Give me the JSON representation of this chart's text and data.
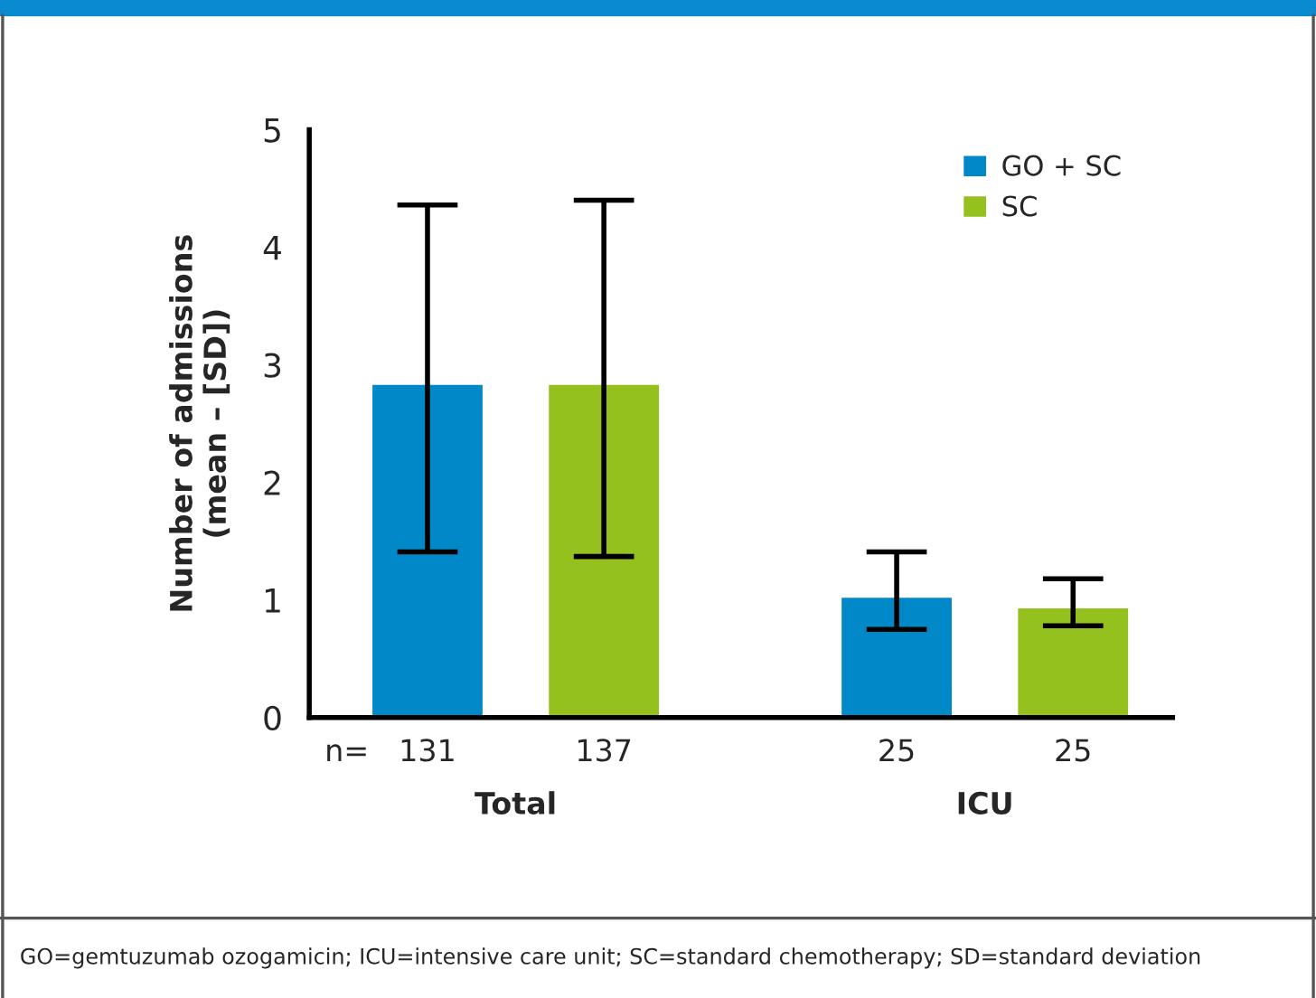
{
  "chart_data": {
    "type": "bar",
    "ylabel": "Number of admissions\n(mean – [SD])",
    "categories": [
      "Total",
      "ICU"
    ],
    "series": [
      {
        "name": "GO + SC",
        "color": "#0088c8",
        "values": [
          2.84,
          1.03
        ],
        "errors": [
          [
            1.41,
            4.36
          ],
          [
            0.75,
            1.41
          ]
        ]
      },
      {
        "name": "SC",
        "color": "#95c11f",
        "values": [
          2.84,
          0.94
        ],
        "errors": [
          [
            1.37,
            4.4
          ],
          [
            0.78,
            1.18
          ]
        ]
      }
    ],
    "ylim": [
      0,
      5
    ],
    "yticks": [
      0,
      1,
      2,
      3,
      4,
      5
    ],
    "grid": false,
    "legend": "top right",
    "annotations": [
      "n=",
      "131",
      "137",
      "25",
      "25",
      "GO=gemtuzumab ozogamicin; ICU=intensive care unit; SC=standard chemotherapy; SD=standard deviation"
    ]
  }
}
